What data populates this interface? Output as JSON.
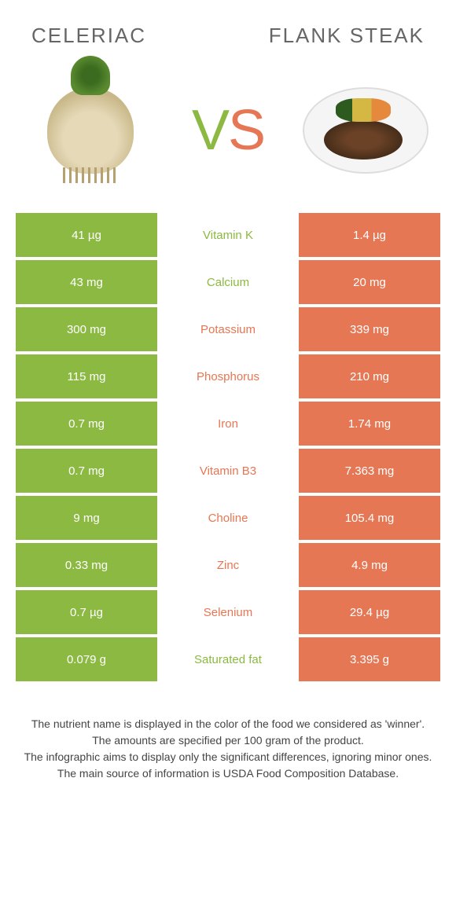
{
  "left_food": "celeriac",
  "right_food": "flank steak",
  "vs": {
    "v": "V",
    "s": "S"
  },
  "colors": {
    "green": "#8bb941",
    "orange": "#e57754"
  },
  "rows": [
    {
      "left": "41 µg",
      "name": "Vitamin K",
      "right": "1.4 µg",
      "winner": "green"
    },
    {
      "left": "43 mg",
      "name": "Calcium",
      "right": "20 mg",
      "winner": "green"
    },
    {
      "left": "300 mg",
      "name": "Potassium",
      "right": "339 mg",
      "winner": "orange"
    },
    {
      "left": "115 mg",
      "name": "Phosphorus",
      "right": "210 mg",
      "winner": "orange"
    },
    {
      "left": "0.7 mg",
      "name": "Iron",
      "right": "1.74 mg",
      "winner": "orange"
    },
    {
      "left": "0.7 mg",
      "name": "Vitamin B3",
      "right": "7.363 mg",
      "winner": "orange"
    },
    {
      "left": "9 mg",
      "name": "Choline",
      "right": "105.4 mg",
      "winner": "orange"
    },
    {
      "left": "0.33 mg",
      "name": "Zinc",
      "right": "4.9 mg",
      "winner": "orange"
    },
    {
      "left": "0.7 µg",
      "name": "Selenium",
      "right": "29.4 µg",
      "winner": "orange"
    },
    {
      "left": "0.079 g",
      "name": "Saturated fat",
      "right": "3.395 g",
      "winner": "green"
    }
  ],
  "footer": [
    "The nutrient name is displayed in the color of the food we considered as 'winner'.",
    "The amounts are specified per 100 gram of the product.",
    "The infographic aims to display only the significant differences, ignoring minor ones.",
    "The main source of information is USDA Food Composition Database."
  ]
}
